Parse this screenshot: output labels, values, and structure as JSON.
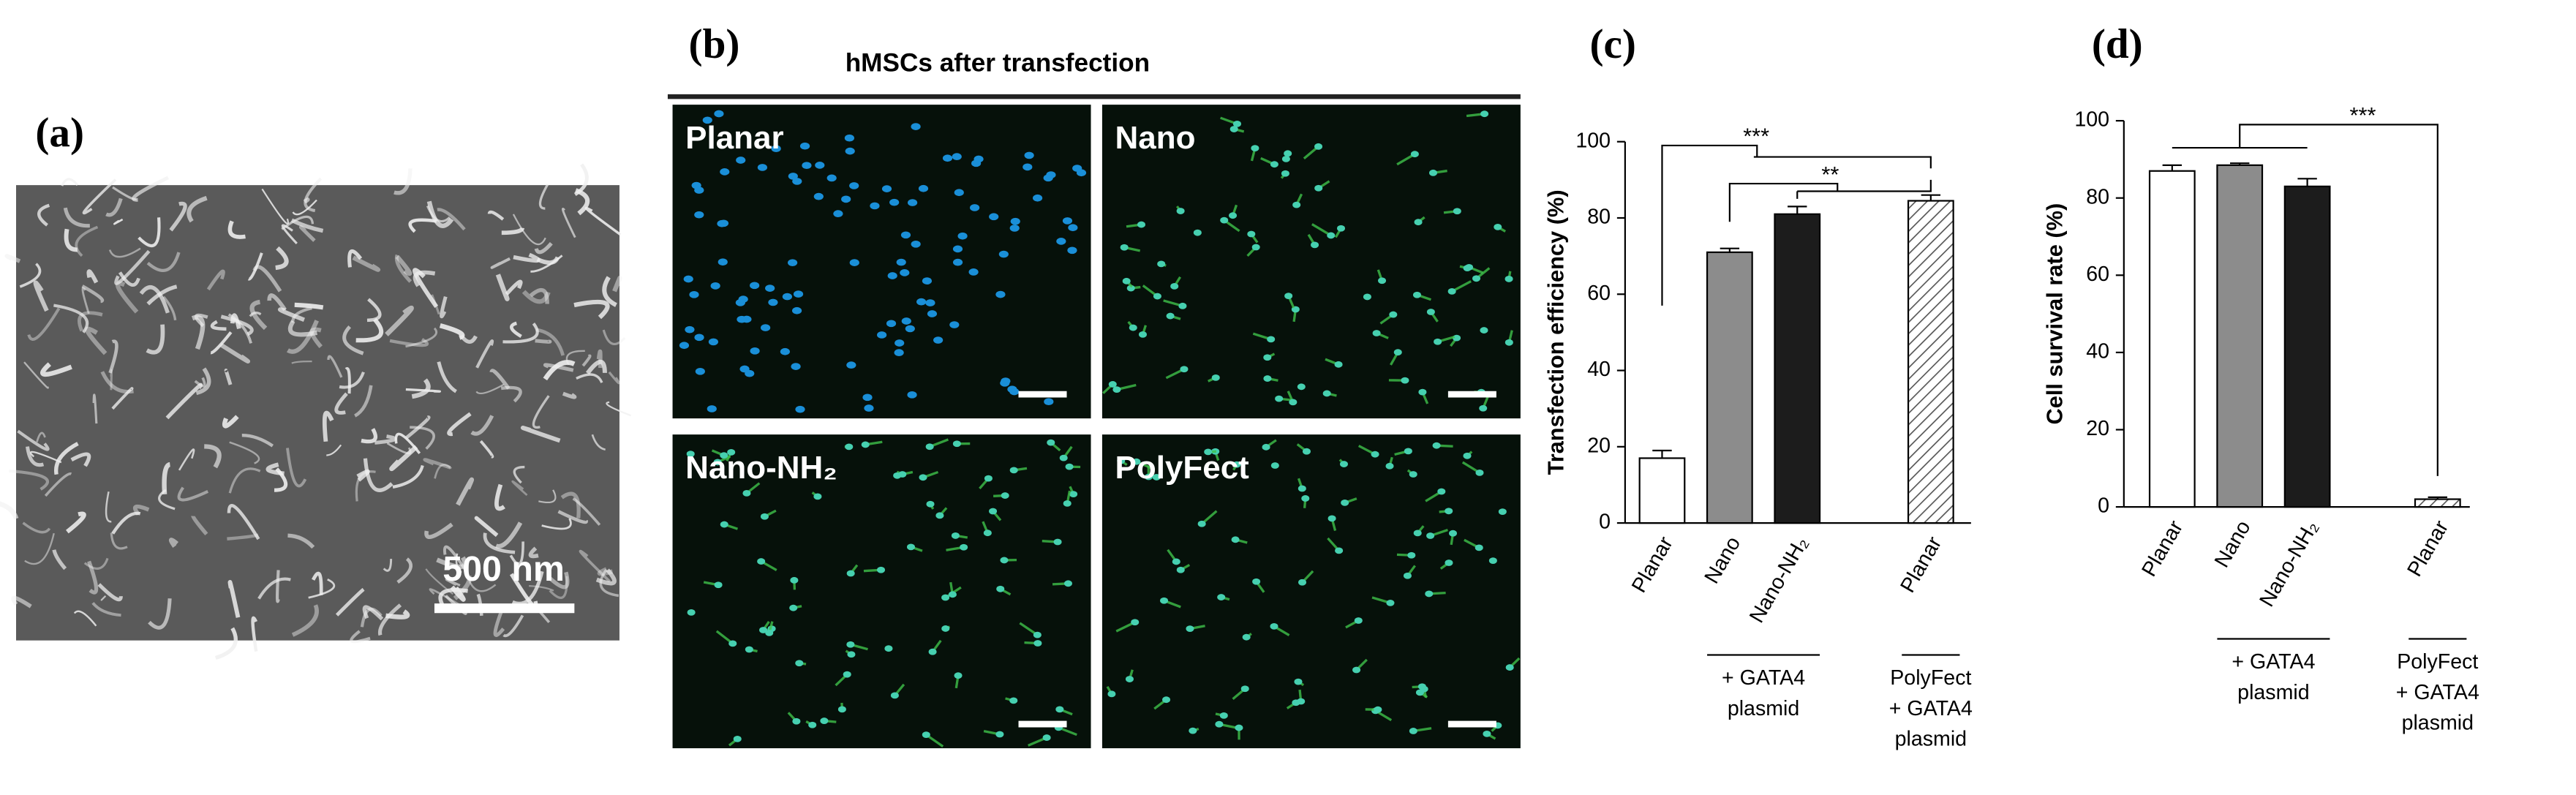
{
  "panel_labels": [
    "(a)",
    "(b)",
    "(c)",
    "(d)"
  ],
  "sem_image": {
    "scale_label": "500 nm"
  },
  "fluorescence": {
    "title": "hMSCs after transfection",
    "panels": [
      "Planar",
      "Nano",
      "Nano-NH₂",
      "PolyFect"
    ]
  },
  "chart_data": [
    {
      "type": "bar",
      "y_label": "Transfection efficiency (%)",
      "categories": [
        "Planar",
        "Nano",
        "Nano-NH₂",
        "Planar"
      ],
      "values": [
        17,
        71,
        81,
        84.5
      ],
      "errors": [
        2,
        1,
        2,
        1.5
      ],
      "colors": [
        "#ffffff",
        "#8c8c8c",
        "#1c1c1c",
        "#ffffff"
      ],
      "hatched": [
        false,
        false,
        false,
        true
      ],
      "ylim": [
        0,
        100
      ],
      "yticks": [
        0,
        20,
        40,
        60,
        80,
        100
      ],
      "groups": [
        {
          "lines": [
            "+ GATA4",
            "plasmid"
          ]
        },
        {
          "lines": [
            "PolyFect",
            "+ GATA4",
            "plasmid"
          ]
        }
      ],
      "significance": [
        "***",
        "**"
      ]
    },
    {
      "type": "bar",
      "y_label": "Cell survival rate (%)",
      "categories": [
        "Planar",
        "Nano",
        "Nano-NH₂",
        "Planar"
      ],
      "values": [
        87,
        88.5,
        83,
        2
      ],
      "errors": [
        1.5,
        0.5,
        2,
        0.5
      ],
      "colors": [
        "#ffffff",
        "#8c8c8c",
        "#1c1c1c",
        "#ffffff"
      ],
      "hatched": [
        false,
        false,
        false,
        true
      ],
      "ylim": [
        0,
        100
      ],
      "yticks": [
        0,
        20,
        40,
        60,
        80,
        100
      ],
      "groups": [
        {
          "lines": [
            "+ GATA4",
            "plasmid"
          ]
        },
        {
          "lines": [
            "PolyFect",
            "+ GATA4",
            "plasmid"
          ]
        }
      ],
      "significance": [
        "***"
      ]
    }
  ]
}
